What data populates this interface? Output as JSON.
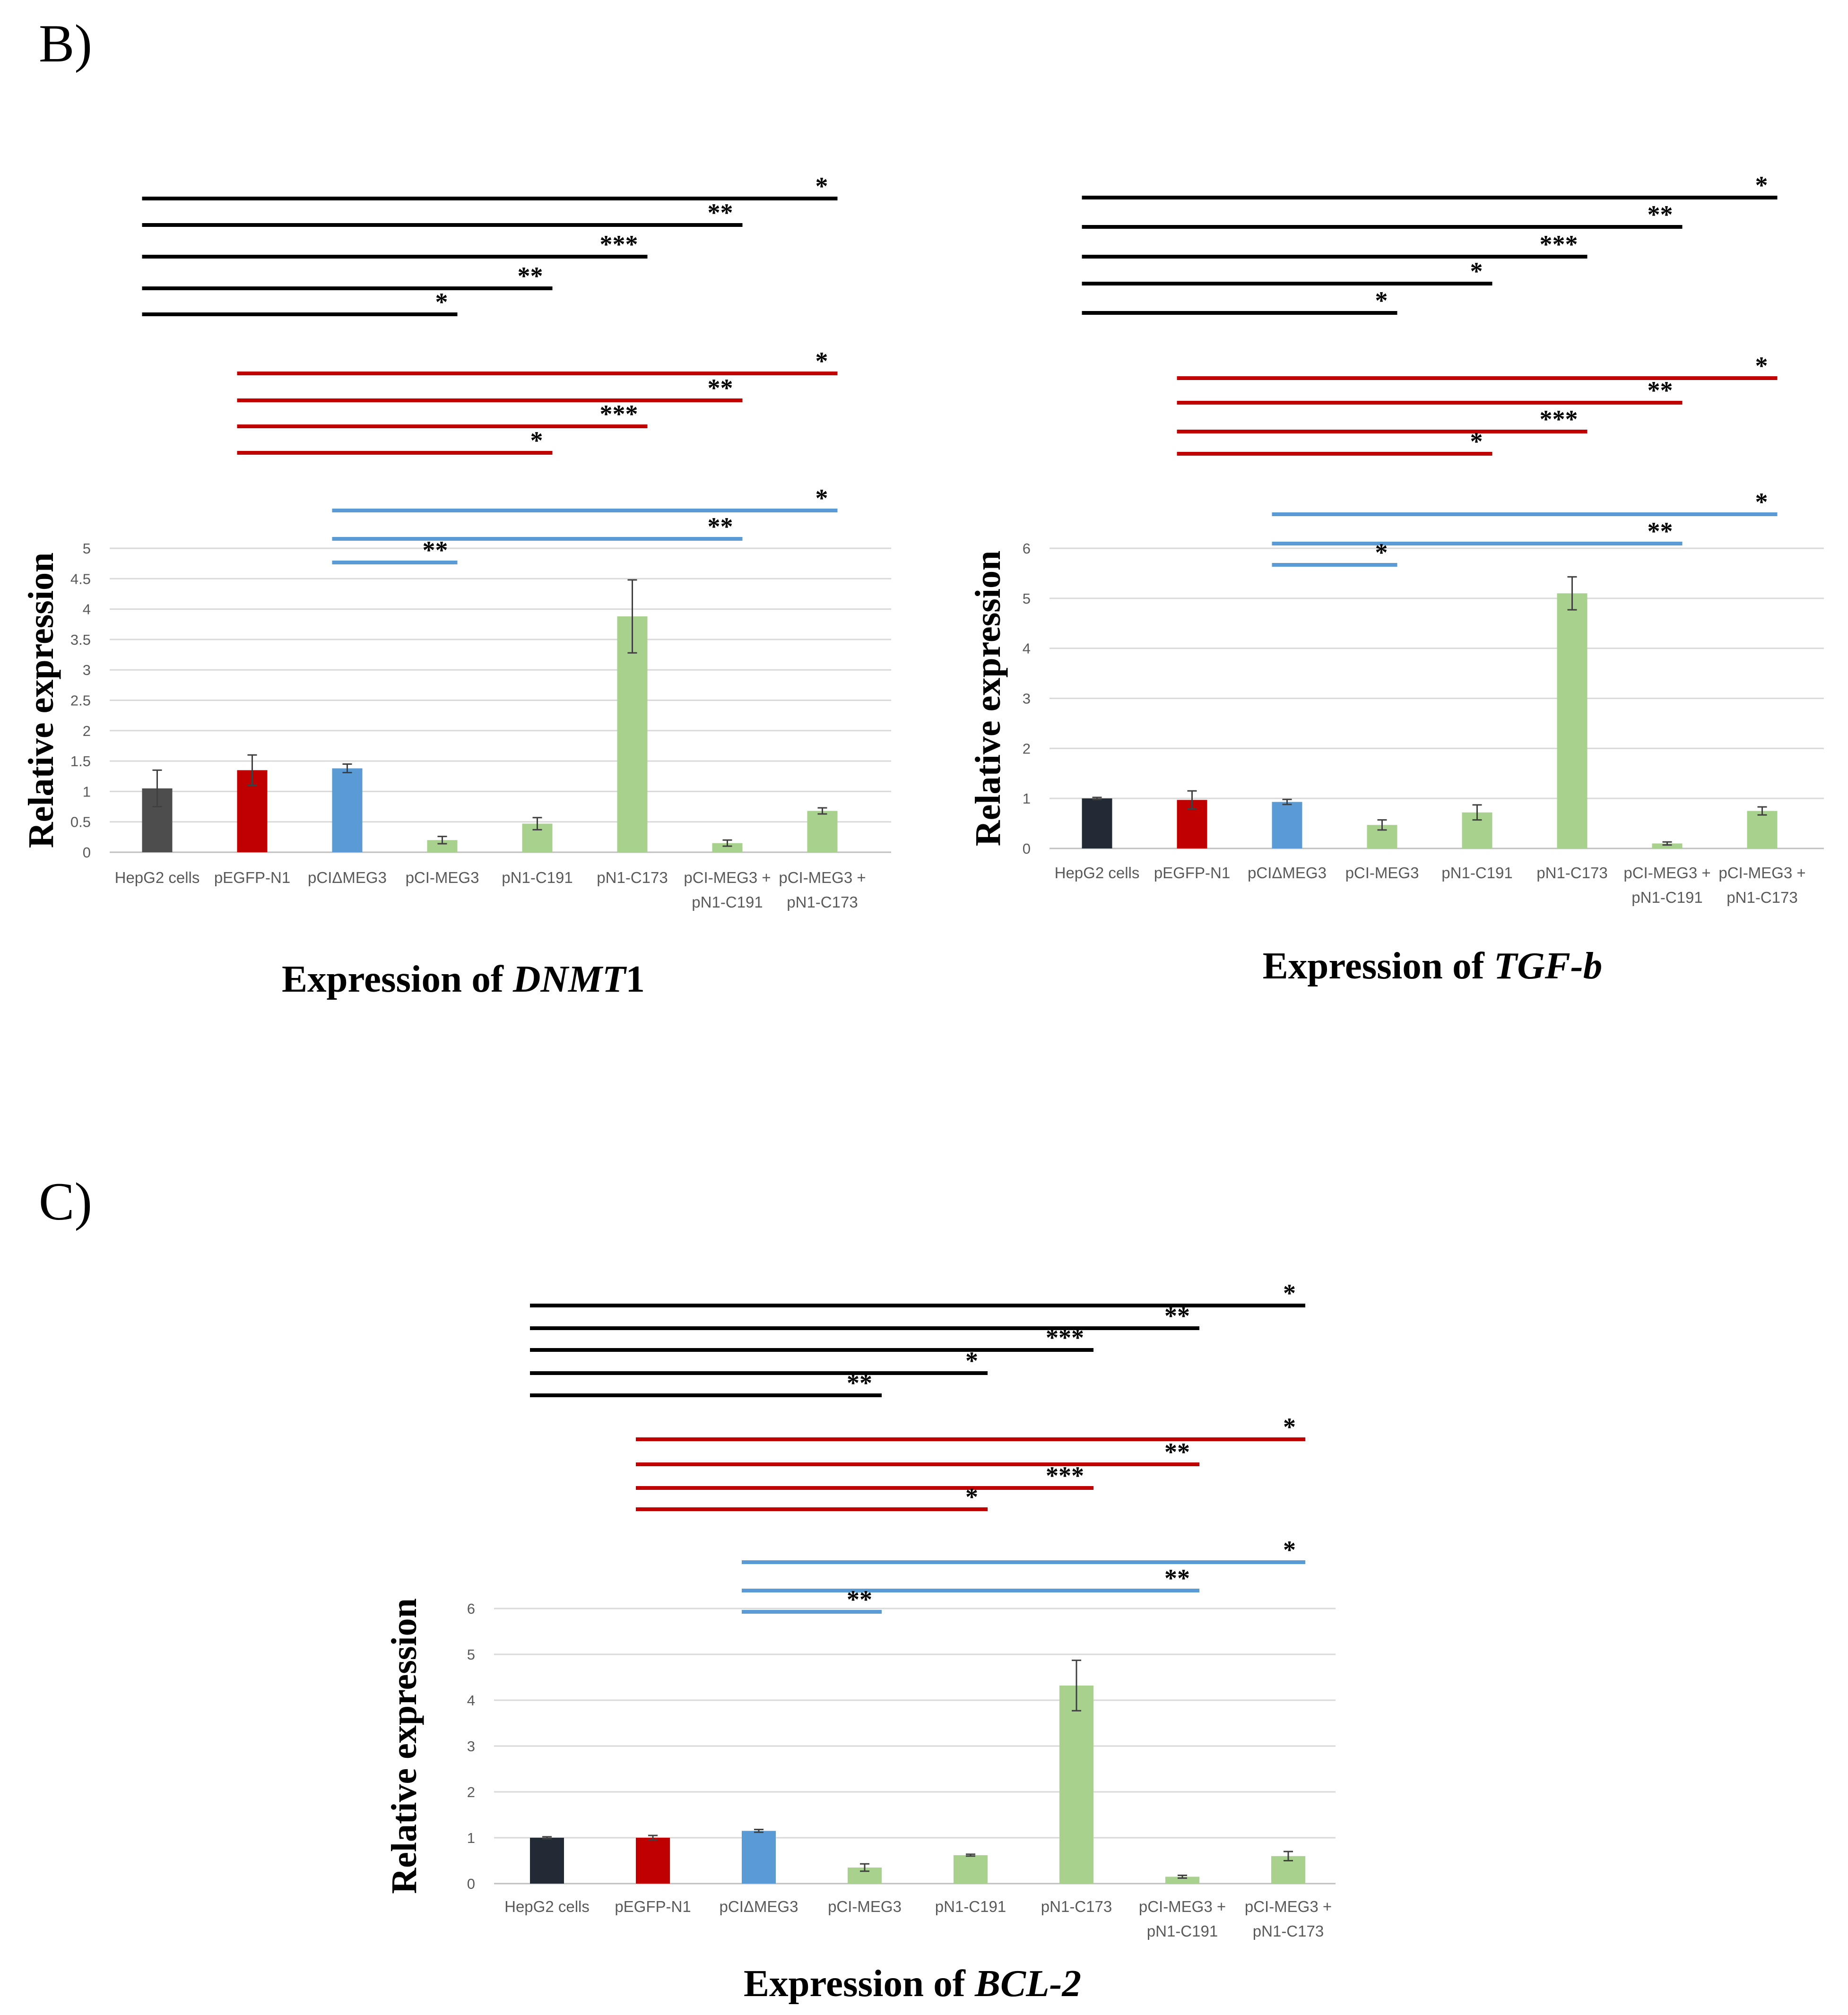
{
  "panels": [
    {
      "id": "B",
      "label": "B)"
    },
    {
      "id": "C",
      "label": "C)"
    }
  ],
  "chart_data": [
    {
      "type": "bar",
      "panel": "B",
      "caption": {
        "prefix": "Expression of ",
        "gene": "DNMT",
        "suffix": "1"
      },
      "ylabel": "Relative expression",
      "ylim": [
        0,
        5
      ],
      "yticks": [
        0,
        0.5,
        1,
        1.5,
        2,
        2.5,
        3,
        3.5,
        4,
        4.5,
        5
      ],
      "ytick_labels": [
        "0",
        "0.5",
        "1",
        "1.5",
        "2",
        "2.5",
        "3",
        "3.5",
        "4",
        "4.5",
        "5"
      ],
      "grid": true,
      "categories": [
        [
          "HepG2 cells"
        ],
        [
          "pEGFP-N1"
        ],
        [
          "pCIΔMEG3"
        ],
        [
          "pCI-MEG3"
        ],
        [
          "pN1-C191"
        ],
        [
          "pN1-C173"
        ],
        [
          "pCI-MEG3 +",
          "pN1-C191"
        ],
        [
          "pCI-MEG3 +",
          "pN1-C173"
        ]
      ],
      "values": [
        1.05,
        1.35,
        1.38,
        0.2,
        0.47,
        3.88,
        0.15,
        0.68
      ],
      "errors": [
        0.3,
        0.25,
        0.07,
        0.06,
        0.1,
        0.6,
        0.05,
        0.05
      ],
      "colors": [
        "#4d4d4d",
        "#c00000",
        "#5b9bd5",
        "#a9d18e",
        "#a9d18e",
        "#a9d18e",
        "#a9d18e",
        "#a9d18e"
      ],
      "comparisons": [
        {
          "from": 0,
          "to": 7,
          "label": "*",
          "color": "#000000"
        },
        {
          "from": 0,
          "to": 6,
          "label": "**",
          "color": "#000000"
        },
        {
          "from": 0,
          "to": 5,
          "label": "***",
          "color": "#000000"
        },
        {
          "from": 0,
          "to": 4,
          "label": "**",
          "color": "#000000"
        },
        {
          "from": 0,
          "to": 3,
          "label": "*",
          "color": "#000000"
        },
        {
          "from": 1,
          "to": 7,
          "label": "*",
          "color": "#c00000"
        },
        {
          "from": 1,
          "to": 6,
          "label": "**",
          "color": "#c00000"
        },
        {
          "from": 1,
          "to": 5,
          "label": "***",
          "color": "#c00000"
        },
        {
          "from": 1,
          "to": 4,
          "label": "*",
          "color": "#c00000"
        },
        {
          "from": 2,
          "to": 7,
          "label": "*",
          "color": "#5b9bd5"
        },
        {
          "from": 2,
          "to": 6,
          "label": "**",
          "color": "#5b9bd5"
        },
        {
          "from": 2,
          "to": 3,
          "label": "**",
          "color": "#5b9bd5"
        }
      ]
    },
    {
      "type": "bar",
      "panel": "B",
      "caption": {
        "prefix": "Expression of ",
        "gene": "TGF-b",
        "suffix": ""
      },
      "ylabel": "Relative expression",
      "ylim": [
        0,
        6
      ],
      "yticks": [
        0,
        1,
        2,
        3,
        4,
        5,
        6
      ],
      "ytick_labels": [
        "0",
        "1",
        "2",
        "3",
        "4",
        "5",
        "6"
      ],
      "grid": true,
      "categories": [
        [
          "HepG2 cells"
        ],
        [
          "pEGFP-N1"
        ],
        [
          "pCIΔMEG3"
        ],
        [
          "pCI-MEG3"
        ],
        [
          "pN1-C191"
        ],
        [
          "pN1-C173"
        ],
        [
          "pCI-MEG3 +",
          "pN1-C191"
        ],
        [
          "pCI-MEG3 +",
          "pN1-C173"
        ]
      ],
      "values": [
        1.0,
        0.97,
        0.93,
        0.47,
        0.72,
        5.1,
        0.1,
        0.75
      ],
      "errors": [
        0.02,
        0.18,
        0.05,
        0.1,
        0.15,
        0.33,
        0.03,
        0.08
      ],
      "colors": [
        "#222a35",
        "#c00000",
        "#5b9bd5",
        "#a9d18e",
        "#a9d18e",
        "#a9d18e",
        "#a9d18e",
        "#a9d18e"
      ],
      "comparisons": [
        {
          "from": 0,
          "to": 7,
          "label": "*",
          "color": "#000000"
        },
        {
          "from": 0,
          "to": 6,
          "label": "**",
          "color": "#000000"
        },
        {
          "from": 0,
          "to": 5,
          "label": "***",
          "color": "#000000"
        },
        {
          "from": 0,
          "to": 4,
          "label": "*",
          "color": "#000000"
        },
        {
          "from": 0,
          "to": 3,
          "label": "*",
          "color": "#000000"
        },
        {
          "from": 1,
          "to": 7,
          "label": "*",
          "color": "#c00000"
        },
        {
          "from": 1,
          "to": 6,
          "label": "**",
          "color": "#c00000"
        },
        {
          "from": 1,
          "to": 5,
          "label": "***",
          "color": "#c00000"
        },
        {
          "from": 1,
          "to": 4,
          "label": "*",
          "color": "#c00000"
        },
        {
          "from": 2,
          "to": 7,
          "label": "*",
          "color": "#5b9bd5"
        },
        {
          "from": 2,
          "to": 6,
          "label": "**",
          "color": "#5b9bd5"
        },
        {
          "from": 2,
          "to": 3,
          "label": "*",
          "color": "#5b9bd5"
        }
      ]
    },
    {
      "type": "bar",
      "panel": "C",
      "caption": {
        "prefix": "Expression of ",
        "gene": "BCL-2",
        "suffix": ""
      },
      "ylabel": "Relative expression",
      "ylim": [
        0,
        6
      ],
      "yticks": [
        0,
        1,
        2,
        3,
        4,
        5,
        6
      ],
      "ytick_labels": [
        "0",
        "1",
        "2",
        "3",
        "4",
        "5",
        "6"
      ],
      "grid": true,
      "categories": [
        [
          "HepG2 cells"
        ],
        [
          "pEGFP-N1"
        ],
        [
          "pCIΔMEG3"
        ],
        [
          "pCI-MEG3"
        ],
        [
          "pN1-C191"
        ],
        [
          "pN1-C173"
        ],
        [
          "pCI-MEG3 +",
          "pN1-C191"
        ],
        [
          "pCI-MEG3 +",
          "pN1-C173"
        ]
      ],
      "values": [
        1.0,
        1.0,
        1.15,
        0.35,
        0.62,
        4.32,
        0.15,
        0.6
      ],
      "errors": [
        0.02,
        0.05,
        0.03,
        0.08,
        0.02,
        0.55,
        0.03,
        0.1
      ],
      "colors": [
        "#222a35",
        "#c00000",
        "#5b9bd5",
        "#a9d18e",
        "#a9d18e",
        "#a9d18e",
        "#a9d18e",
        "#a9d18e"
      ],
      "comparisons": [
        {
          "from": 0,
          "to": 7,
          "label": "*",
          "color": "#000000"
        },
        {
          "from": 0,
          "to": 6,
          "label": "**",
          "color": "#000000"
        },
        {
          "from": 0,
          "to": 5,
          "label": "***",
          "color": "#000000"
        },
        {
          "from": 0,
          "to": 4,
          "label": "*",
          "color": "#000000"
        },
        {
          "from": 0,
          "to": 3,
          "label": "**",
          "color": "#000000"
        },
        {
          "from": 1,
          "to": 7,
          "label": "*",
          "color": "#c00000"
        },
        {
          "from": 1,
          "to": 6,
          "label": "**",
          "color": "#c00000"
        },
        {
          "from": 1,
          "to": 5,
          "label": "***",
          "color": "#c00000"
        },
        {
          "from": 1,
          "to": 4,
          "label": "*",
          "color": "#c00000"
        },
        {
          "from": 2,
          "to": 7,
          "label": "*",
          "color": "#5b9bd5"
        },
        {
          "from": 2,
          "to": 6,
          "label": "**",
          "color": "#5b9bd5"
        },
        {
          "from": 2,
          "to": 3,
          "label": "**",
          "color": "#5b9bd5"
        }
      ]
    }
  ]
}
